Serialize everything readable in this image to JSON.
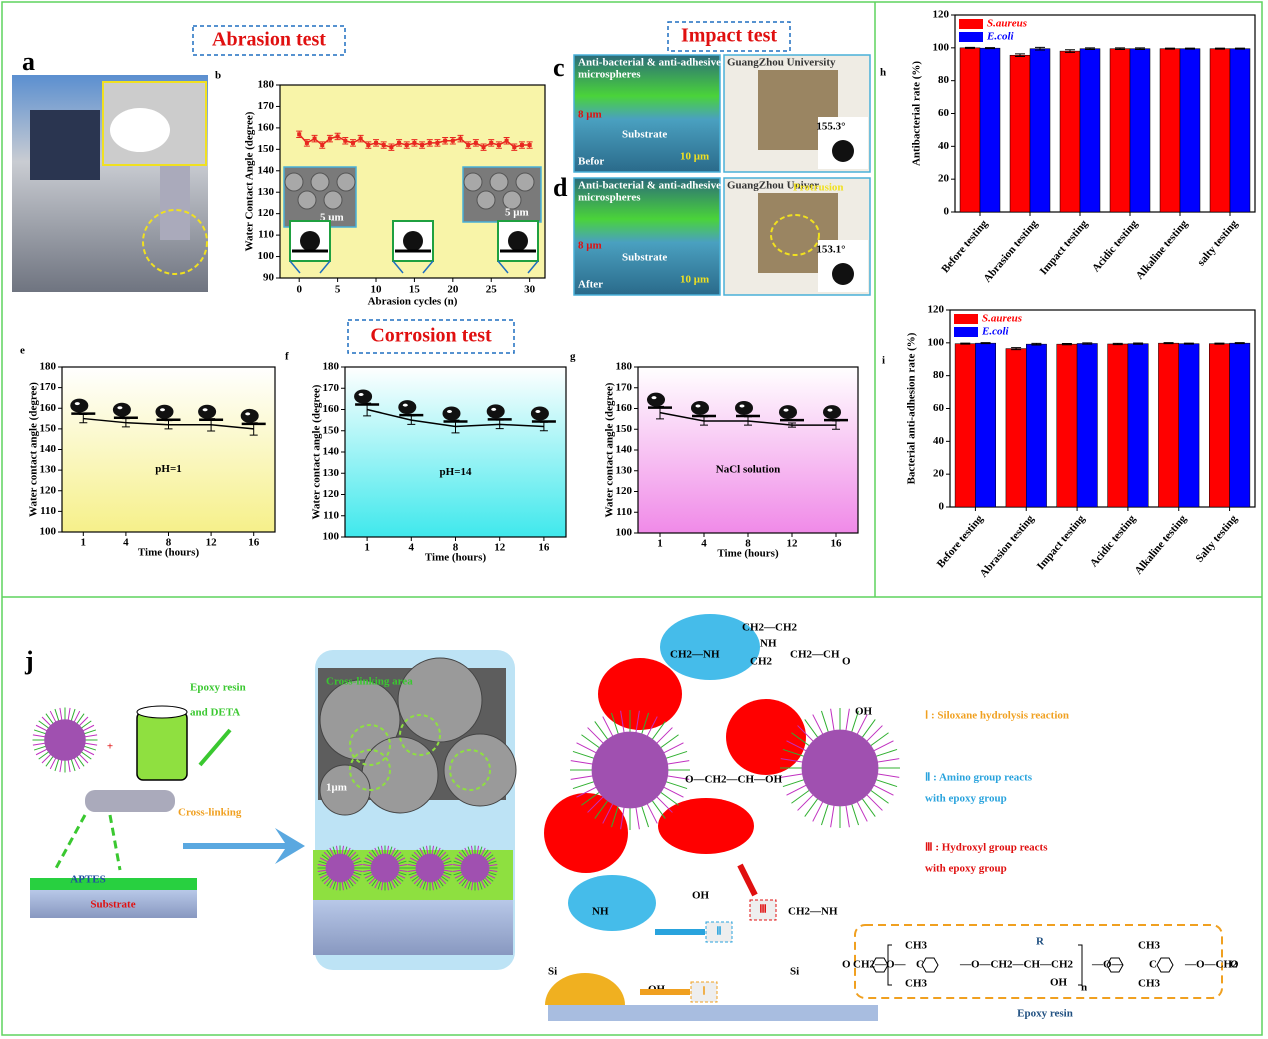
{
  "headings": {
    "abrasion": "Abrasion test",
    "impact": "Impact test",
    "corrosion": "Corrosion test"
  },
  "panel_labels": {
    "a": "a",
    "c": "c",
    "d": "d",
    "j": "j"
  },
  "panel_c": {
    "coating": "Anti-bacterial & anti-adhesive",
    "coating2": "microspheres",
    "thickness": "8 μm",
    "substrate": "Substrate",
    "state": "Befor",
    "scale": "10 μm",
    "angle": "155.3°",
    "paper": "GuangZhou University"
  },
  "panel_d": {
    "coating": "Anti-bacterial & anti-adhesive",
    "coating2": "microspheres",
    "thickness": "8 μm",
    "substrate": "Substrate",
    "state": "After",
    "scale": "10 μm",
    "angle": "153.1°",
    "defect": "Protrusion",
    "paper": "GuangZhou Univer"
  },
  "panel_j": {
    "reagent": [
      "Epoxy resin",
      "and DETA"
    ],
    "process": "Cross-linking",
    "primer": "APTES",
    "substrate": "Substrate",
    "sem_title": "Cross-linking area",
    "sem_scale": "1μm",
    "reactions": [
      {
        "line1": "Ⅰ : Siloxane hydrolysis reaction",
        "color": "#f0a020"
      },
      {
        "line1": "Ⅱ : Amino group reacts",
        "line2": "with epoxy group",
        "color": "#29a3dd"
      },
      {
        "line1": "Ⅲ : Hydroxyl group reacts",
        "line2": "with epoxy group",
        "color": "#e01010"
      }
    ],
    "markers": [
      "Ⅰ",
      "Ⅱ",
      "Ⅲ"
    ],
    "epoxy_label": "Epoxy resin",
    "r_label": "R",
    "fragments": [
      "CH2—CH2",
      "NH",
      "CH2—NH",
      "CH2",
      "CH2—CH",
      "O",
      "OH",
      "O—CH2—CH—OH",
      "Si",
      "NH",
      "OH",
      "CH2—NH",
      "Si",
      "OH"
    ],
    "formula": [
      "O",
      "CH2—O—",
      "CH3",
      "C",
      "CH3",
      "—O—CH2—CH—CH2",
      "OH",
      "n",
      "—O—",
      "CH3",
      "C",
      "CH3",
      "—O—CH2",
      "O"
    ]
  },
  "chart_data": [
    {
      "type": "line",
      "panel": "b",
      "xlabel": "Abrasion cycles (n)",
      "ylabel": "Water Contact Angle (degree)",
      "color": "#e8271f",
      "background": "#f8f4a8",
      "x": [
        0,
        1,
        2,
        3,
        4,
        5,
        6,
        7,
        8,
        9,
        10,
        11,
        12,
        13,
        14,
        15,
        16,
        17,
        18,
        19,
        20,
        21,
        22,
        23,
        24,
        25,
        26,
        27,
        28,
        29,
        30
      ],
      "values": [
        157,
        153,
        155,
        152,
        155,
        156,
        154,
        153,
        155,
        152,
        153,
        152,
        151,
        153,
        152,
        153,
        152,
        153,
        153,
        154,
        154,
        155,
        152,
        153,
        151,
        153,
        152,
        154,
        151,
        152,
        152
      ],
      "errors": [
        1.5,
        1.5,
        1.5,
        1.5,
        1.5,
        1.5,
        1.5,
        1.5,
        1.5,
        1.5,
        1.5,
        1.5,
        1.5,
        1.5,
        1.5,
        1.5,
        1.5,
        1.5,
        1.5,
        1.5,
        1.5,
        1.5,
        1.5,
        1.5,
        1.5,
        1.5,
        1.5,
        1.5,
        1.5,
        1.5,
        1.5
      ],
      "xlim": [
        -2.5,
        32
      ],
      "ylim": [
        90,
        180
      ],
      "xticks": [
        0,
        5,
        10,
        15,
        20,
        25,
        30
      ],
      "yticks": [
        90,
        100,
        110,
        120,
        130,
        140,
        150,
        160,
        170,
        180
      ],
      "inset_labels": [
        "5 μm",
        "5 μm"
      ]
    },
    {
      "type": "line",
      "panel": "e",
      "xlabel": "Time (hours)",
      "ylabel": "Water contact angle (degree)",
      "color": "#000000",
      "background": "#f6f08a",
      "annotation": "pH=1",
      "categories": [
        "1",
        "4",
        "8",
        "12",
        "16"
      ],
      "values": [
        155,
        153,
        152,
        152,
        150
      ],
      "errors": [
        2,
        2,
        2,
        3,
        3
      ],
      "ylim": [
        100,
        180
      ],
      "yticks": [
        100,
        110,
        120,
        130,
        140,
        150,
        160,
        170,
        180
      ]
    },
    {
      "type": "line",
      "panel": "f",
      "xlabel": "Time (hours)",
      "ylabel": "Water contact angle (degree)",
      "color": "#000000",
      "background": "#3fe8ec",
      "annotation": "pH=14",
      "categories": [
        "1",
        "4",
        "8",
        "12",
        "16"
      ],
      "values": [
        160,
        155,
        152,
        153,
        152
      ],
      "errors": [
        3,
        2,
        3,
        2,
        2
      ],
      "ylim": [
        100,
        180
      ],
      "yticks": [
        100,
        110,
        120,
        130,
        140,
        150,
        160,
        170,
        180
      ]
    },
    {
      "type": "line",
      "panel": "g",
      "xlabel": "Time (hours)",
      "ylabel": "Water contact angle (degree)",
      "color": "#000000",
      "background": "#f08ae8",
      "annotation": "NaCl solution",
      "categories": [
        "1",
        "4",
        "8",
        "12",
        "16"
      ],
      "values": [
        158,
        154,
        154,
        152,
        152
      ],
      "errors": [
        3,
        2,
        2,
        1,
        2
      ],
      "ylim": [
        100,
        180
      ],
      "yticks": [
        100,
        110,
        120,
        130,
        140,
        150,
        160,
        170,
        180
      ]
    },
    {
      "type": "bar",
      "panel": "h",
      "ylabel": "Antibacterial  rate (%)",
      "legend": "upper left",
      "categories": [
        "Before testing",
        "Abrasion testing",
        "Impact testing",
        "Acidic testing",
        "Alkaline testing",
        "salty testing"
      ],
      "series": [
        {
          "name": "S.aureus",
          "color": "#ff0000",
          "values": [
            100,
            95.5,
            98,
            99.5,
            99.5,
            99.5
          ],
          "errors": [
            0.3,
            0.8,
            0.8,
            0.5,
            0.3,
            0.3
          ]
        },
        {
          "name": "E.coli",
          "color": "#0000ff",
          "values": [
            99.8,
            99.5,
            99.5,
            99.5,
            99.5,
            99.5
          ],
          "errors": [
            0.3,
            0.8,
            0.5,
            0.5,
            0.3,
            0.3
          ]
        }
      ],
      "ylim": [
        0,
        120
      ],
      "yticks": [
        0,
        20,
        40,
        60,
        80,
        100,
        120
      ]
    },
    {
      "type": "bar",
      "panel": "i",
      "ylabel": "Bacterial anti-adhesion rate (%)",
      "legend": "upper left",
      "categories": [
        "Before testing",
        "Abrasion testing",
        "Impact testing",
        "Acidic testing",
        "Alkaline testing",
        "Salty testing"
      ],
      "series": [
        {
          "name": "S.aureus",
          "color": "#ff0000",
          "values": [
            99.5,
            96.5,
            99.2,
            99.3,
            99.8,
            99.5
          ],
          "errors": [
            0.3,
            0.6,
            0.4,
            0.4,
            0.3,
            0.3
          ]
        },
        {
          "name": "E.coli",
          "color": "#0000ff",
          "values": [
            99.8,
            99.2,
            99.6,
            99.5,
            99.5,
            99.8
          ],
          "errors": [
            0.3,
            0.5,
            0.4,
            0.4,
            0.3,
            0.3
          ]
        }
      ],
      "ylim": [
        0,
        120
      ],
      "yticks": [
        0,
        20,
        40,
        60,
        80,
        100,
        120
      ]
    }
  ]
}
